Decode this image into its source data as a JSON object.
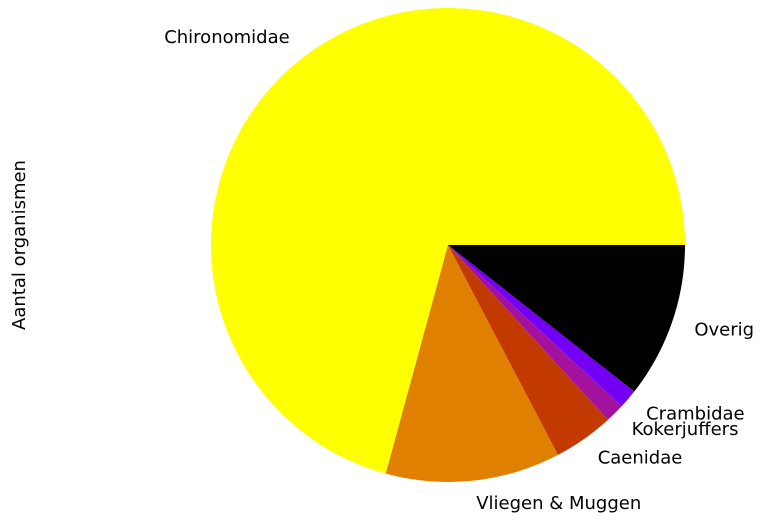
{
  "chart_data": {
    "type": "pie",
    "ylabel": "Aantal organismen",
    "categories": [
      "Chironomidae",
      "Vliegen & Muggen",
      "Caenidae",
      "Kokerjuffers",
      "Crambidae",
      "Overig"
    ],
    "values": [
      70.7,
      11.9,
      4.1,
      1.3,
      1.3,
      10.6
    ],
    "colors": [
      "#ffff00",
      "#e08000",
      "#c23a00",
      "#a3129f",
      "#7300f5",
      "#000000"
    ],
    "startangle": 0,
    "counterclock": true
  }
}
